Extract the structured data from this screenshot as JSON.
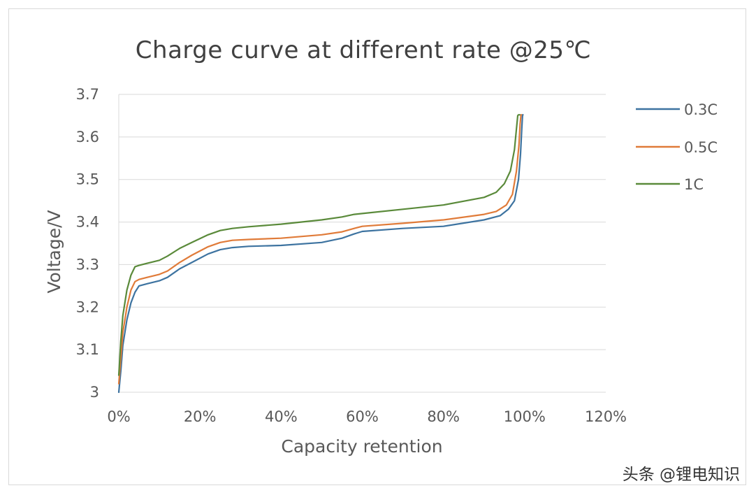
{
  "chart_data": {
    "type": "line",
    "title": "Charge curve at different rate @25℃",
    "xlabel": "Capacity retention",
    "ylabel": "Voltage/V",
    "xlim": [
      0,
      120
    ],
    "ylim": [
      3.0,
      3.7
    ],
    "x_ticks": [
      0,
      20,
      40,
      60,
      80,
      100,
      120
    ],
    "x_tick_labels": [
      "0%",
      "20%",
      "40%",
      "60%",
      "80%",
      "100%",
      "120%"
    ],
    "y_ticks": [
      3.0,
      3.1,
      3.2,
      3.3,
      3.4,
      3.5,
      3.6,
      3.7
    ],
    "y_tick_labels": [
      "3",
      "3.1",
      "3.2",
      "3.3",
      "3.4",
      "3.5",
      "3.6",
      "3.7"
    ],
    "grid": "horizontal",
    "legend_position": "right",
    "series": [
      {
        "name": "0.3C",
        "color": "#3d73a0",
        "x": [
          0,
          0.5,
          1,
          2,
          3,
          4,
          5,
          7,
          10,
          12,
          15,
          18,
          22,
          25,
          28,
          32,
          40,
          50,
          55,
          58,
          60,
          70,
          80,
          90,
          94,
          96,
          97.5,
          98.5,
          99,
          99.3,
          99.5,
          99.6
        ],
        "y": [
          3.0,
          3.05,
          3.11,
          3.17,
          3.21,
          3.235,
          3.25,
          3.255,
          3.262,
          3.27,
          3.29,
          3.305,
          3.325,
          3.335,
          3.34,
          3.343,
          3.345,
          3.352,
          3.362,
          3.372,
          3.378,
          3.385,
          3.39,
          3.405,
          3.415,
          3.43,
          3.45,
          3.5,
          3.56,
          3.62,
          3.652,
          3.652
        ]
      },
      {
        "name": "0.5C",
        "color": "#e07b39",
        "x": [
          0,
          0.5,
          1,
          2,
          3,
          4,
          5,
          7,
          10,
          12,
          15,
          18,
          22,
          25,
          28,
          32,
          40,
          50,
          55,
          58,
          60,
          70,
          80,
          90,
          93,
          95.5,
          97,
          98,
          98.6,
          98.9,
          99.1,
          99.2
        ],
        "y": [
          3.02,
          3.08,
          3.14,
          3.2,
          3.24,
          3.26,
          3.265,
          3.27,
          3.277,
          3.285,
          3.305,
          3.322,
          3.342,
          3.352,
          3.357,
          3.359,
          3.362,
          3.37,
          3.377,
          3.385,
          3.39,
          3.397,
          3.405,
          3.418,
          3.425,
          3.44,
          3.465,
          3.52,
          3.58,
          3.63,
          3.652,
          3.652
        ]
      },
      {
        "name": "1C",
        "color": "#5a8a3a",
        "x": [
          0,
          0.5,
          1,
          2,
          3,
          4,
          5,
          7,
          10,
          12,
          15,
          18,
          22,
          25,
          28,
          32,
          40,
          50,
          55,
          58,
          60,
          70,
          80,
          90,
          93,
          95,
          96.5,
          97.5,
          98,
          98.3,
          98.5,
          98.8
        ],
        "y": [
          3.04,
          3.12,
          3.18,
          3.24,
          3.275,
          3.295,
          3.298,
          3.303,
          3.31,
          3.32,
          3.338,
          3.352,
          3.37,
          3.38,
          3.385,
          3.389,
          3.395,
          3.405,
          3.412,
          3.418,
          3.42,
          3.43,
          3.44,
          3.458,
          3.47,
          3.49,
          3.52,
          3.57,
          3.62,
          3.65,
          3.652,
          3.652
        ]
      }
    ]
  },
  "watermark": "头条 @锂电知识"
}
